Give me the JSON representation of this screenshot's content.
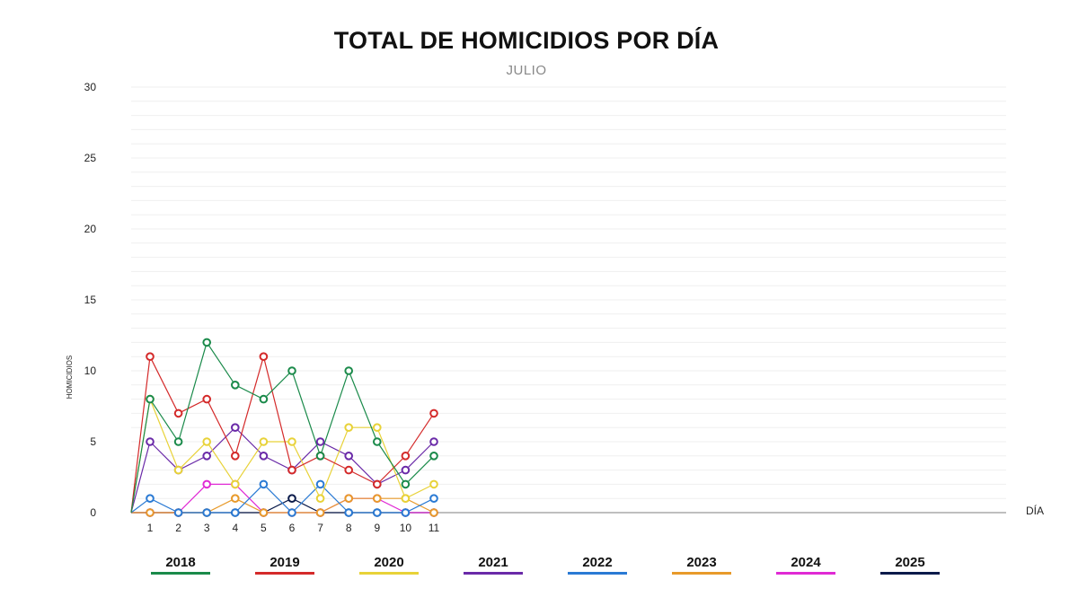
{
  "chart_data": {
    "type": "line",
    "title": "TOTAL DE HOMICIDIOS POR DÍA",
    "subtitle": "JULIO",
    "xlabel": "DÍA",
    "ylabel": "HOMICIDIOS",
    "ylim": [
      0,
      30
    ],
    "y_ticks": [
      0,
      5,
      10,
      15,
      20,
      25,
      30
    ],
    "x": [
      1,
      2,
      3,
      4,
      5,
      6,
      7,
      8,
      9,
      10,
      11
    ],
    "x_range": [
      0,
      31
    ],
    "grid": true,
    "legend_position": "bottom",
    "series": [
      {
        "name": "2018",
        "color": "#1a8a4a",
        "values": [
          8,
          5,
          12,
          9,
          8,
          10,
          4,
          10,
          5,
          2,
          4
        ]
      },
      {
        "name": "2019",
        "color": "#d42a2a",
        "values": [
          11,
          7,
          8,
          4,
          11,
          3,
          4,
          3,
          2,
          4,
          7
        ]
      },
      {
        "name": "2020",
        "color": "#e8d238",
        "values": [
          8,
          3,
          5,
          2,
          5,
          5,
          1,
          6,
          6,
          1,
          2
        ]
      },
      {
        "name": "2021",
        "color": "#6a2aa8",
        "values": [
          5,
          3,
          4,
          6,
          4,
          3,
          5,
          4,
          2,
          3,
          5
        ]
      },
      {
        "name": "2022",
        "color": "#2a7ad4",
        "values": [
          1,
          0,
          0,
          0,
          2,
          0,
          2,
          0,
          0,
          0,
          1
        ]
      },
      {
        "name": "2023",
        "color": "#e89a2a",
        "values": [
          0,
          0,
          0,
          1,
          0,
          0,
          0,
          1,
          1,
          1,
          0
        ]
      },
      {
        "name": "2024",
        "color": "#e02ad4",
        "values": [
          0,
          0,
          2,
          2,
          0,
          0,
          0,
          1,
          1,
          0,
          0
        ]
      },
      {
        "name": "2025",
        "color": "#0a1a4a",
        "values": [
          0,
          0,
          0,
          0,
          0,
          1,
          0,
          0,
          0,
          0,
          0
        ]
      }
    ]
  }
}
